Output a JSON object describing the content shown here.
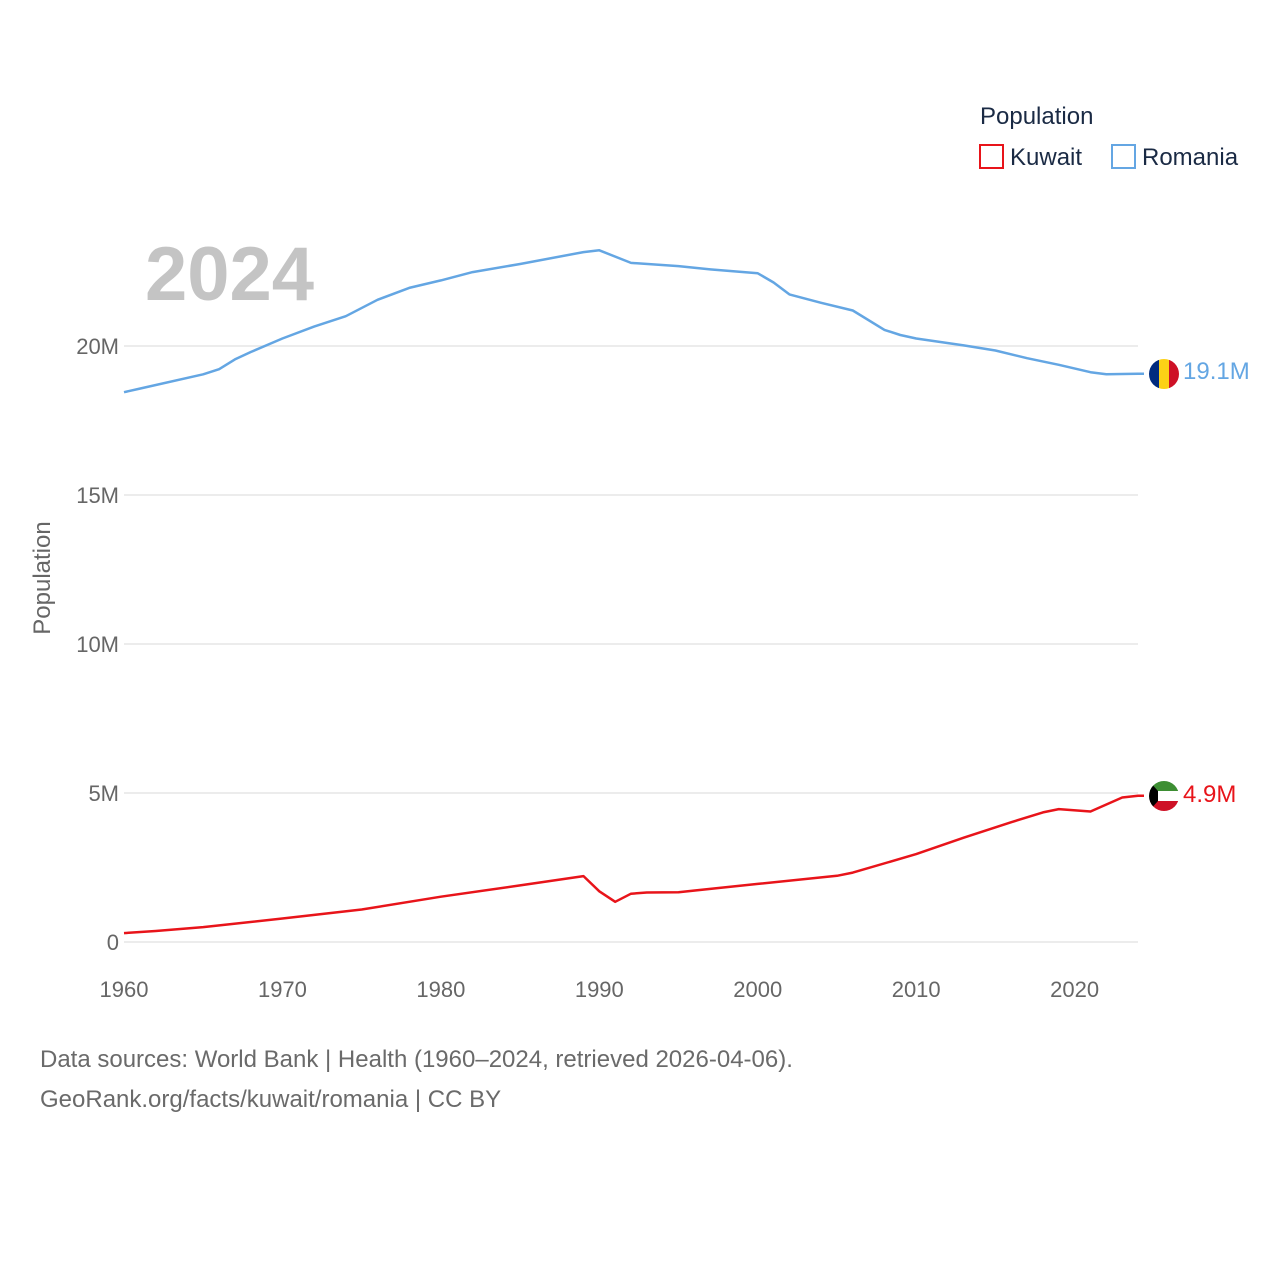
{
  "chart_data": {
    "type": "line",
    "year_label": "2024",
    "ylabel": "Population",
    "legend": {
      "title": "Population",
      "position": "top-right"
    },
    "xlim": [
      1960,
      2024
    ],
    "ylim": [
      0,
      25000000
    ],
    "x_ticks": [
      {
        "value": 1960,
        "label": "1960"
      },
      {
        "value": 1970,
        "label": "1970"
      },
      {
        "value": 1980,
        "label": "1980"
      },
      {
        "value": 1990,
        "label": "1990"
      },
      {
        "value": 2000,
        "label": "2000"
      },
      {
        "value": 2010,
        "label": "2010"
      },
      {
        "value": 2020,
        "label": "2020"
      }
    ],
    "y_ticks": [
      {
        "value": 0,
        "label": "0"
      },
      {
        "value": 5000000,
        "label": "5M"
      },
      {
        "value": 10000000,
        "label": "10M"
      },
      {
        "value": 15000000,
        "label": "15M"
      },
      {
        "value": 20000000,
        "label": "20M"
      }
    ],
    "series": [
      {
        "name": "Kuwait",
        "color": "#e8141a",
        "end_label": "4.9M",
        "flag": "kuwait-flag",
        "points": [
          [
            1960,
            0.3
          ],
          [
            1962,
            0.37
          ],
          [
            1965,
            0.5
          ],
          [
            1970,
            0.79
          ],
          [
            1975,
            1.09
          ],
          [
            1980,
            1.52
          ],
          [
            1985,
            1.9
          ],
          [
            1989,
            2.21
          ],
          [
            1990,
            1.7
          ],
          [
            1991,
            1.35
          ],
          [
            1992,
            1.62
          ],
          [
            1993,
            1.66
          ],
          [
            1995,
            1.67
          ],
          [
            2000,
            1.95
          ],
          [
            2005,
            2.22
          ],
          [
            2006,
            2.33
          ],
          [
            2010,
            2.95
          ],
          [
            2013,
            3.5
          ],
          [
            2016,
            4.02
          ],
          [
            2018,
            4.35
          ],
          [
            2019,
            4.46
          ],
          [
            2021,
            4.38
          ],
          [
            2023,
            4.85
          ],
          [
            2024,
            4.91
          ]
        ]
      },
      {
        "name": "Romania",
        "color": "#64a6e3",
        "end_label": "19.1M",
        "flag": "romania-flag",
        "points": [
          [
            1960,
            18.45
          ],
          [
            1961,
            18.57
          ],
          [
            1965,
            19.05
          ],
          [
            1966,
            19.22
          ],
          [
            1967,
            19.55
          ],
          [
            1968,
            19.8
          ],
          [
            1970,
            20.25
          ],
          [
            1972,
            20.65
          ],
          [
            1974,
            21.0
          ],
          [
            1976,
            21.55
          ],
          [
            1978,
            21.95
          ],
          [
            1980,
            22.2
          ],
          [
            1982,
            22.48
          ],
          [
            1985,
            22.75
          ],
          [
            1989,
            23.15
          ],
          [
            1990,
            23.21
          ],
          [
            1992,
            22.79
          ],
          [
            1995,
            22.68
          ],
          [
            1997,
            22.57
          ],
          [
            2000,
            22.44
          ],
          [
            2001,
            22.13
          ],
          [
            2002,
            21.73
          ],
          [
            2004,
            21.45
          ],
          [
            2006,
            21.19
          ],
          [
            2008,
            20.54
          ],
          [
            2009,
            20.37
          ],
          [
            2010,
            20.25
          ],
          [
            2013,
            20.02
          ],
          [
            2015,
            19.85
          ],
          [
            2017,
            19.59
          ],
          [
            2019,
            19.37
          ],
          [
            2021,
            19.12
          ],
          [
            2022,
            19.05
          ],
          [
            2024,
            19.07
          ]
        ]
      }
    ],
    "sources": "Data sources: World Bank | Health (1960–2024, retrieved 2026-04-06).",
    "credit": "GeoRank.org/facts/kuwait/romania | CC BY"
  }
}
